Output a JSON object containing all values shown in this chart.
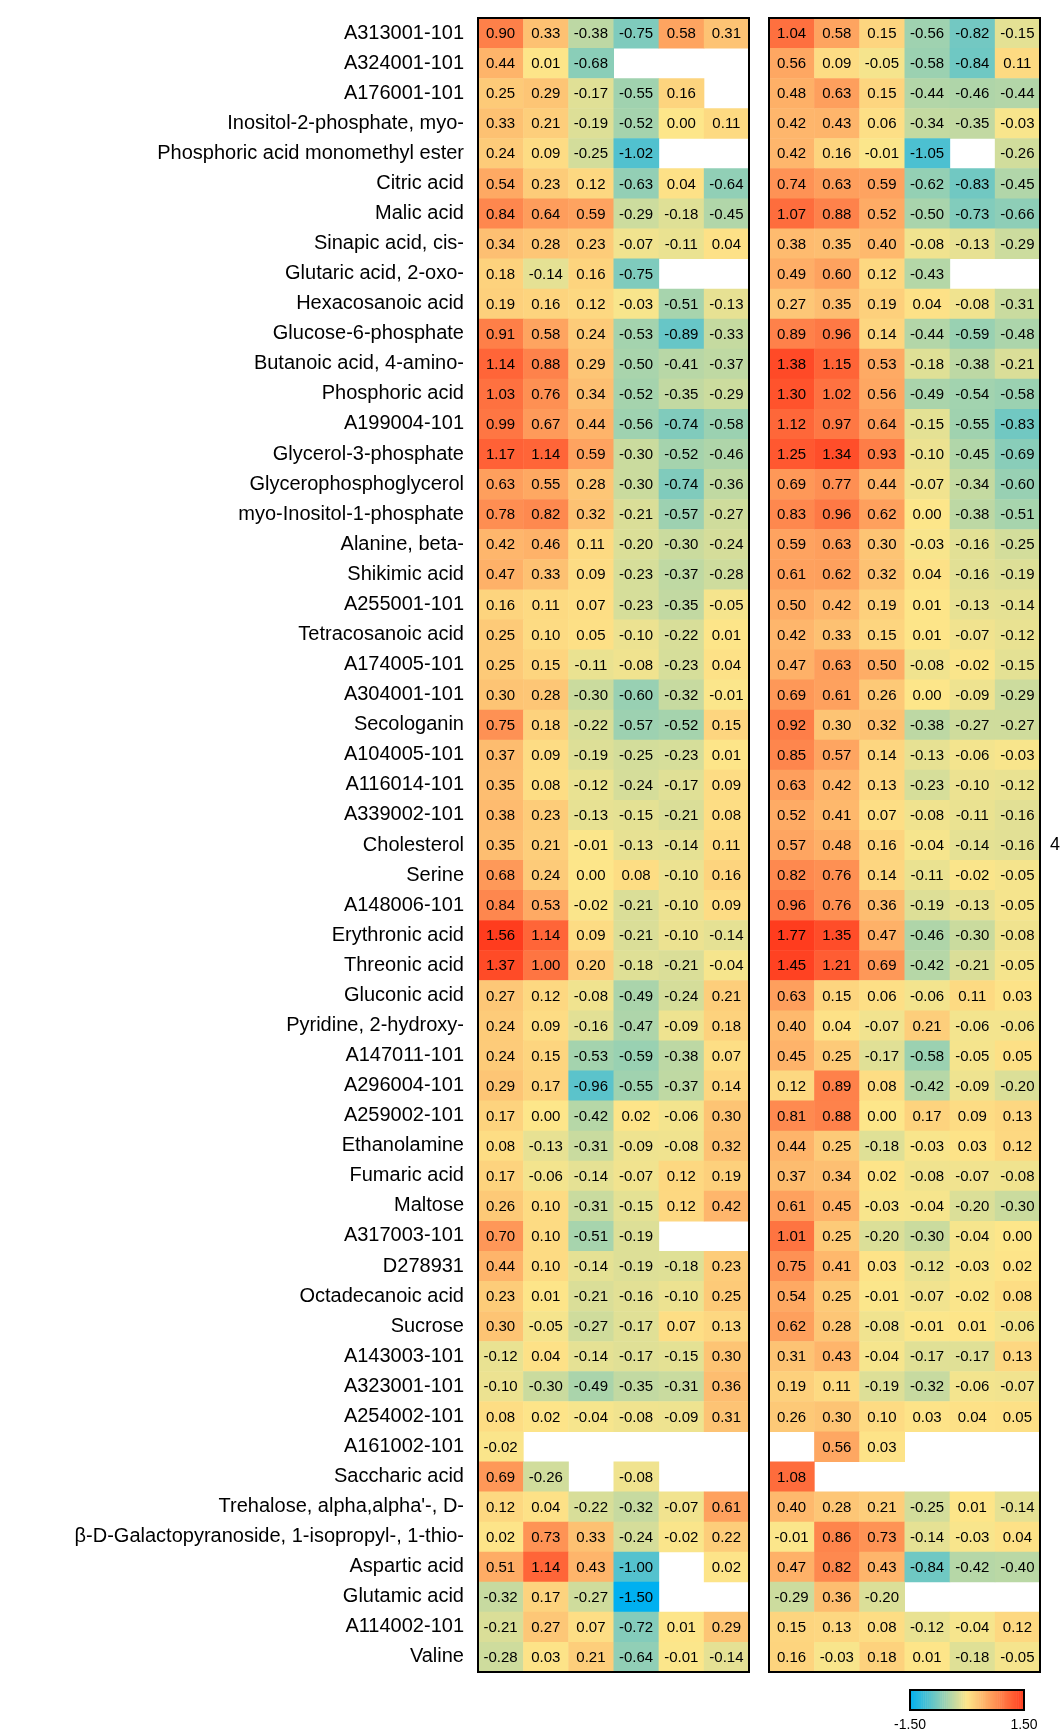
{
  "chart_data": {
    "type": "heatmap",
    "categories": [
      null,
      null,
      null,
      null,
      null,
      null,
      null,
      null,
      null,
      null,
      null,
      null
    ],
    "y_categories": [
      "A313001-101",
      "A324001-101",
      "A176001-101",
      "Inositol-2-phosphate, myo-",
      "Phosphoric acid monomethyl ester",
      "Citric acid",
      "Malic acid",
      "Sinapic acid, cis-",
      "Glutaric acid, 2-oxo-",
      "Hexacosanoic acid",
      "Glucose-6-phosphate",
      "Butanoic acid, 4-amino-",
      "Phosphoric acid",
      "A199004-101",
      "Glycerol-3-phosphate",
      "Glycerophosphoglycerol",
      "myo-Inositol-1-phosphate",
      "Alanine, beta-",
      "Shikimic acid",
      "A255001-101",
      "Tetracosanoic acid",
      "A174005-101",
      "A304001-101",
      "Secologanin",
      "A104005-101",
      "A116014-101",
      "A339002-101",
      "Cholesterol",
      "Serine",
      "A148006-101",
      "Erythronic acid",
      "Threonic acid",
      "Gluconic acid",
      "Pyridine, 2-hydroxy-",
      "A147011-101",
      "A296004-101",
      "A259002-101",
      "Ethanolamine",
      "Fumaric acid",
      "Maltose",
      "A317003-101",
      "D278931",
      "Octadecanoic acid",
      "Sucrose",
      "A143003-101",
      "A323001-101",
      "A254002-101",
      "A161002-101",
      "Saccharic acid",
      "Trehalose, alpha,alpha'-, D-",
      "β-D-Galactopyranoside, 1-isopropyl-, 1-thio-",
      "Aspartic acid",
      "Glutamic acid",
      "A114002-101",
      "Valine"
    ],
    "cells": [
      [
        0.9,
        0.33,
        -0.38,
        -0.75,
        0.58,
        0.31,
        1.04,
        0.58,
        0.15,
        -0.56,
        -0.82,
        -0.15
      ],
      [
        0.44,
        0.01,
        -0.68,
        null,
        null,
        null,
        0.56,
        0.09,
        -0.05,
        -0.58,
        -0.84,
        0.11
      ],
      [
        0.25,
        0.29,
        -0.17,
        -0.55,
        0.16,
        null,
        0.48,
        0.63,
        0.15,
        -0.44,
        -0.46,
        -0.44
      ],
      [
        0.33,
        0.21,
        -0.19,
        -0.52,
        0.0,
        0.11,
        0.42,
        0.43,
        0.06,
        -0.34,
        -0.35,
        -0.03
      ],
      [
        0.24,
        0.09,
        -0.25,
        -1.02,
        null,
        null,
        0.42,
        0.16,
        -0.01,
        -1.05,
        null,
        -0.26
      ],
      [
        0.54,
        0.23,
        0.12,
        -0.63,
        0.04,
        -0.64,
        0.74,
        0.63,
        0.59,
        -0.62,
        -0.83,
        -0.45
      ],
      [
        0.84,
        0.64,
        0.59,
        -0.29,
        -0.18,
        -0.45,
        1.07,
        0.88,
        0.52,
        -0.5,
        -0.73,
        -0.66
      ],
      [
        0.34,
        0.28,
        0.23,
        -0.07,
        -0.11,
        0.04,
        0.38,
        0.35,
        0.4,
        -0.08,
        -0.13,
        -0.29
      ],
      [
        0.18,
        -0.14,
        0.16,
        -0.75,
        null,
        null,
        0.49,
        0.6,
        0.12,
        -0.43,
        null,
        null
      ],
      [
        0.19,
        0.16,
        0.12,
        -0.03,
        -0.51,
        -0.13,
        0.27,
        0.35,
        0.19,
        0.04,
        -0.08,
        -0.31
      ],
      [
        0.91,
        0.58,
        0.24,
        -0.53,
        -0.89,
        -0.33,
        0.89,
        0.96,
        0.14,
        -0.44,
        -0.59,
        -0.48
      ],
      [
        1.14,
        0.88,
        0.29,
        -0.5,
        -0.41,
        -0.37,
        1.38,
        1.15,
        0.53,
        -0.18,
        -0.38,
        -0.21
      ],
      [
        1.03,
        0.76,
        0.34,
        -0.52,
        -0.35,
        -0.29,
        1.3,
        1.02,
        0.56,
        -0.49,
        -0.54,
        -0.58
      ],
      [
        0.99,
        0.67,
        0.44,
        -0.56,
        -0.74,
        -0.58,
        1.12,
        0.97,
        0.64,
        -0.15,
        -0.55,
        -0.83
      ],
      [
        1.17,
        1.14,
        0.59,
        -0.3,
        -0.52,
        -0.46,
        1.25,
        1.34,
        0.93,
        -0.1,
        -0.45,
        -0.69
      ],
      [
        0.63,
        0.55,
        0.28,
        -0.3,
        -0.74,
        -0.36,
        0.69,
        0.77,
        0.44,
        -0.07,
        -0.34,
        -0.6
      ],
      [
        0.78,
        0.82,
        0.32,
        -0.21,
        -0.57,
        -0.27,
        0.83,
        0.96,
        0.62,
        0.0,
        -0.38,
        -0.51
      ],
      [
        0.42,
        0.46,
        0.11,
        -0.2,
        -0.3,
        -0.24,
        0.59,
        0.63,
        0.3,
        -0.03,
        -0.16,
        -0.25
      ],
      [
        0.47,
        0.33,
        0.09,
        -0.23,
        -0.37,
        -0.28,
        0.61,
        0.62,
        0.32,
        0.04,
        -0.16,
        -0.19
      ],
      [
        0.16,
        0.11,
        0.07,
        -0.23,
        -0.35,
        -0.05,
        0.5,
        0.42,
        0.19,
        0.01,
        -0.13,
        -0.14
      ],
      [
        0.25,
        0.1,
        0.05,
        -0.1,
        -0.22,
        0.01,
        0.42,
        0.33,
        0.15,
        0.01,
        -0.07,
        -0.12
      ],
      [
        0.25,
        0.15,
        -0.11,
        -0.08,
        -0.23,
        0.04,
        0.47,
        0.63,
        0.5,
        -0.08,
        -0.02,
        -0.15
      ],
      [
        0.3,
        0.28,
        -0.3,
        -0.6,
        -0.32,
        -0.01,
        0.69,
        0.61,
        0.26,
        0.0,
        -0.09,
        -0.29
      ],
      [
        0.75,
        0.18,
        -0.22,
        -0.57,
        -0.52,
        0.15,
        0.92,
        0.3,
        0.32,
        -0.38,
        -0.27,
        -0.27
      ],
      [
        0.37,
        0.09,
        -0.19,
        -0.25,
        -0.23,
        0.01,
        0.85,
        0.57,
        0.14,
        -0.13,
        -0.06,
        -0.03
      ],
      [
        0.35,
        0.08,
        -0.12,
        -0.24,
        -0.17,
        0.09,
        0.63,
        0.42,
        0.13,
        -0.23,
        -0.1,
        -0.12
      ],
      [
        0.38,
        0.23,
        -0.13,
        -0.15,
        -0.21,
        0.08,
        0.52,
        0.41,
        0.07,
        -0.08,
        -0.11,
        -0.16
      ],
      [
        0.35,
        0.21,
        -0.01,
        -0.13,
        -0.14,
        0.11,
        0.57,
        0.48,
        0.16,
        -0.04,
        -0.14,
        -0.16
      ],
      [
        0.68,
        0.24,
        0.0,
        0.08,
        -0.1,
        0.16,
        0.82,
        0.76,
        0.14,
        -0.11,
        -0.02,
        -0.05
      ],
      [
        0.84,
        0.53,
        -0.02,
        -0.21,
        -0.1,
        0.09,
        0.96,
        0.76,
        0.36,
        -0.19,
        -0.13,
        -0.05
      ],
      [
        1.56,
        1.14,
        0.09,
        -0.21,
        -0.1,
        -0.14,
        1.77,
        1.35,
        0.47,
        -0.46,
        -0.3,
        -0.08
      ],
      [
        1.37,
        1.0,
        0.2,
        -0.18,
        -0.21,
        -0.04,
        1.45,
        1.21,
        0.69,
        -0.42,
        -0.21,
        -0.05
      ],
      [
        0.27,
        0.12,
        -0.08,
        -0.49,
        -0.24,
        0.21,
        0.63,
        0.15,
        0.06,
        -0.06,
        0.11,
        0.03
      ],
      [
        0.24,
        0.09,
        -0.16,
        -0.47,
        -0.09,
        0.18,
        0.4,
        0.04,
        -0.07,
        0.21,
        -0.06,
        -0.06
      ],
      [
        0.24,
        0.15,
        -0.53,
        -0.59,
        -0.38,
        0.07,
        0.45,
        0.25,
        -0.17,
        -0.58,
        -0.05,
        0.05
      ],
      [
        0.29,
        0.17,
        -0.96,
        -0.55,
        -0.37,
        0.14,
        0.12,
        0.89,
        0.08,
        -0.42,
        -0.09,
        -0.2
      ],
      [
        0.17,
        0.0,
        -0.42,
        0.02,
        -0.06,
        0.3,
        0.81,
        0.88,
        0.0,
        0.17,
        0.09,
        0.13
      ],
      [
        0.08,
        -0.13,
        -0.31,
        -0.09,
        -0.08,
        0.32,
        0.44,
        0.25,
        -0.18,
        -0.03,
        0.03,
        0.12
      ],
      [
        0.17,
        -0.06,
        -0.14,
        -0.07,
        0.12,
        0.19,
        0.37,
        0.34,
        0.02,
        -0.08,
        -0.07,
        -0.08
      ],
      [
        0.26,
        0.1,
        -0.31,
        -0.15,
        0.12,
        0.42,
        0.61,
        0.45,
        -0.03,
        -0.04,
        -0.2,
        -0.3
      ],
      [
        0.7,
        0.1,
        -0.51,
        -0.19,
        null,
        null,
        1.01,
        0.25,
        -0.2,
        -0.3,
        -0.04,
        0.0
      ],
      [
        0.44,
        0.1,
        -0.14,
        -0.19,
        -0.18,
        0.23,
        0.75,
        0.41,
        0.03,
        -0.12,
        -0.03,
        0.02
      ],
      [
        0.23,
        0.01,
        -0.21,
        -0.16,
        -0.1,
        0.25,
        0.54,
        0.25,
        -0.01,
        -0.07,
        -0.02,
        0.08
      ],
      [
        0.3,
        -0.05,
        -0.27,
        -0.17,
        0.07,
        0.13,
        0.62,
        0.28,
        -0.08,
        -0.01,
        0.01,
        -0.06
      ],
      [
        -0.12,
        0.04,
        -0.14,
        -0.17,
        -0.15,
        0.3,
        0.31,
        0.43,
        -0.04,
        -0.17,
        -0.17,
        0.13
      ],
      [
        -0.1,
        -0.3,
        -0.49,
        -0.35,
        -0.31,
        0.36,
        0.19,
        0.11,
        -0.19,
        -0.32,
        -0.06,
        -0.07
      ],
      [
        0.08,
        0.02,
        -0.04,
        -0.08,
        -0.09,
        0.31,
        0.26,
        0.3,
        0.1,
        0.03,
        0.04,
        0.05
      ],
      [
        -0.02,
        null,
        null,
        null,
        null,
        null,
        null,
        0.56,
        0.03,
        null,
        null,
        null
      ],
      [
        0.69,
        -0.26,
        null,
        -0.08,
        null,
        null,
        1.08,
        null,
        null,
        null,
        null,
        null
      ],
      [
        0.12,
        0.04,
        -0.22,
        -0.32,
        -0.07,
        0.61,
        0.4,
        0.28,
        0.21,
        -0.25,
        0.01,
        -0.14
      ],
      [
        0.02,
        0.73,
        0.33,
        -0.24,
        -0.02,
        0.22,
        -0.01,
        0.86,
        0.73,
        -0.14,
        -0.03,
        0.04
      ],
      [
        0.51,
        1.14,
        0.43,
        -1.0,
        null,
        0.02,
        0.47,
        0.82,
        0.43,
        -0.84,
        -0.42,
        -0.4
      ],
      [
        -0.32,
        0.17,
        -0.27,
        -1.5,
        null,
        null,
        -0.29,
        0.36,
        -0.2,
        null,
        null,
        null
      ],
      [
        -0.21,
        0.27,
        0.07,
        -0.72,
        0.01,
        0.29,
        0.15,
        0.13,
        0.08,
        -0.12,
        -0.04,
        0.12
      ],
      [
        -0.28,
        0.03,
        0.21,
        -0.64,
        -0.01,
        -0.14,
        0.16,
        -0.03,
        0.18,
        0.01,
        -0.18,
        -0.05
      ]
    ],
    "cell_labels": [
      [
        "0.90",
        "0.33",
        "-0.38",
        "-0.75",
        "0.58",
        "0.31",
        "1.04",
        "0.58",
        "0.15",
        "-0.56",
        "-0.82",
        "-0.15"
      ],
      [
        "0.44",
        "0.01",
        "-0.68",
        null,
        null,
        null,
        "0.56",
        "0.09",
        "-0.05",
        "-0.58",
        "-0.84",
        "0.11"
      ],
      [
        "0.25",
        "0.29",
        "-0.17",
        "-0.55",
        "0.16",
        null,
        "0.48",
        "0.63",
        "0.15",
        "-0.44",
        "-0.46",
        "-0.44"
      ],
      [
        "0.33",
        "0.21",
        "-0.19",
        "-0.52",
        "0.00",
        "0.11",
        "0.42",
        "0.43",
        "0.06",
        "-0.34",
        "-0.35",
        "-0.03"
      ],
      [
        "0.24",
        "0.09",
        "-0.25",
        "-1.02",
        null,
        null,
        "0.42",
        "0.16",
        "-0.01",
        "-1.05",
        null,
        "-0.26"
      ],
      [
        "0.54",
        "0.23",
        "0.12",
        "-0.63",
        "0.04",
        "-0.64",
        "0.74",
        "0.63",
        "0.59",
        "-0.62",
        "-0.83",
        "-0.45"
      ],
      [
        "0.84",
        "0.64",
        "0.59",
        "-0.29",
        "-0.18",
        "-0.45",
        "1.07",
        "0.88",
        "0.52",
        "-0.50",
        "-0.73",
        "-0.66"
      ],
      [
        "0.34",
        "0.28",
        "0.23",
        "-0.07",
        "-0.11",
        "0.04",
        "0.38",
        "0.35",
        "0.40",
        "-0.08",
        "-0.13",
        "-0.29"
      ],
      [
        "0.18",
        "-0.14",
        "0.16",
        "-0.75",
        null,
        null,
        "0.49",
        "0.60",
        "0.12",
        "-0.43",
        null,
        null
      ],
      [
        "0.19",
        "0.16",
        "0.12",
        "-0.03",
        "-0.51",
        "-0.13",
        "0.27",
        "0.35",
        "0.19",
        "0.04",
        "-0.08",
        "-0.31"
      ],
      [
        "0.91",
        "0.58",
        "0.24",
        "-0.53",
        "-0.89",
        "-0.33",
        "0.89",
        "0.96",
        "0.14",
        "-0.44",
        "-0.59",
        "-0.48"
      ],
      [
        "1.14",
        "0.88",
        "0.29",
        "-0.50",
        "-0.41",
        "-0.37",
        "1.38",
        "1.15",
        "0.53",
        "-0.18",
        "-0.38",
        "-0.21"
      ],
      [
        "1.03",
        "0.76",
        "0.34",
        "-0.52",
        "-0.35",
        "-0.29",
        "1.30",
        "1.02",
        "0.56",
        "-0.49",
        "-0.54",
        "-0.58"
      ],
      [
        "0.99",
        "0.67",
        "0.44",
        "-0.56",
        "-0.74",
        "-0.58",
        "1.12",
        "0.97",
        "0.64",
        "-0.15",
        "-0.55",
        "-0.83"
      ],
      [
        "1.17",
        "1.14",
        "0.59",
        "-0.30",
        "-0.52",
        "-0.46",
        "1.25",
        "1.34",
        "0.93",
        "-0.10",
        "-0.45",
        "-0.69"
      ],
      [
        "0.63",
        "0.55",
        "0.28",
        "-0.30",
        "-0.74",
        "-0.36",
        "0.69",
        "0.77",
        "0.44",
        "-0.07",
        "-0.34",
        "-0.60"
      ],
      [
        "0.78",
        "0.82",
        "0.32",
        "-0.21",
        "-0.57",
        "-0.27",
        "0.83",
        "0.96",
        "0.62",
        "0.00",
        "-0.38",
        "-0.51"
      ],
      [
        "0.42",
        "0.46",
        "0.11",
        "-0.20",
        "-0.30",
        "-0.24",
        "0.59",
        "0.63",
        "0.30",
        "-0.03",
        "-0.16",
        "-0.25"
      ],
      [
        "0.47",
        "0.33",
        "0.09",
        "-0.23",
        "-0.37",
        "-0.28",
        "0.61",
        "0.62",
        "0.32",
        "0.04",
        "-0.16",
        "-0.19"
      ],
      [
        "0.16",
        "0.11",
        "0.07",
        "-0.23",
        "-0.35",
        "-0.05",
        "0.50",
        "0.42",
        "0.19",
        "0.01",
        "-0.13",
        "-0.14"
      ],
      [
        "0.25",
        "0.10",
        "0.05",
        "-0.10",
        "-0.22",
        "0.01",
        "0.42",
        "0.33",
        "0.15",
        "0.01",
        "-0.07",
        "-0.12"
      ],
      [
        "0.25",
        "0.15",
        "-0.11",
        "-0.08",
        "-0.23",
        "0.04",
        "0.47",
        "0.63",
        "0.50",
        "-0.08",
        "-0.02",
        "-0.15"
      ],
      [
        "0.30",
        "0.28",
        "-0.30",
        "-0.60",
        "-0.32",
        "-0.01",
        "0.69",
        "0.61",
        "0.26",
        "0.00",
        "-0.09",
        "-0.29"
      ],
      [
        "0.75",
        "0.18",
        "-0.22",
        "-0.57",
        "-0.52",
        "0.15",
        "0.92",
        "0.30",
        "0.32",
        "-0.38",
        "-0.27",
        "-0.27"
      ],
      [
        "0.37",
        "0.09",
        "-0.19",
        "-0.25",
        "-0.23",
        "0.01",
        "0.85",
        "0.57",
        "0.14",
        "-0.13",
        "-0.06",
        "-0.03"
      ],
      [
        "0.35",
        "0.08",
        "-0.12",
        "-0.24",
        "-0.17",
        "0.09",
        "0.63",
        "0.42",
        "0.13",
        "-0.23",
        "-0.10",
        "-0.12"
      ],
      [
        "0.38",
        "0.23",
        "-0.13",
        "-0.15",
        "-0.21",
        "0.08",
        "0.52",
        "0.41",
        "0.07",
        "-0.08",
        "-0.11",
        "-0.16"
      ],
      [
        "0.35",
        "0.21",
        "-0.01",
        "-0.13",
        "-0.14",
        "0.11",
        "0.57",
        "0.48",
        "0.16",
        "-0.04",
        "-0.14",
        "-0.16"
      ],
      [
        "0.68",
        "0.24",
        "0.00",
        "0.08",
        "-0.10",
        "0.16",
        "0.82",
        "0.76",
        "0.14",
        "-0.11",
        "-0.02",
        "-0.05"
      ],
      [
        "0.84",
        "0.53",
        "-0.02",
        "-0.21",
        "-0.10",
        "0.09",
        "0.96",
        "0.76",
        "0.36",
        "-0.19",
        "-0.13",
        "-0.05"
      ],
      [
        "1.56",
        "1.14",
        "0.09",
        "-0.21",
        "-0.10",
        "-0.14",
        "1.77",
        "1.35",
        "0.47",
        "-0.46",
        "-0.30",
        "-0.08"
      ],
      [
        "1.37",
        "1.00",
        "0.20",
        "-0.18",
        "-0.21",
        "-0.04",
        "1.45",
        "1.21",
        "0.69",
        "-0.42",
        "-0.21",
        "-0.05"
      ],
      [
        "0.27",
        "0.12",
        "-0.08",
        "-0.49",
        "-0.24",
        "0.21",
        "0.63",
        "0.15",
        "0.06",
        "-0.06",
        "0.11",
        "0.03"
      ],
      [
        "0.24",
        "0.09",
        "-0.16",
        "-0.47",
        "-0.09",
        "0.18",
        "0.40",
        "0.04",
        "-0.07",
        "0.21",
        "-0.06",
        "-0.06"
      ],
      [
        "0.24",
        "0.15",
        "-0.53",
        "-0.59",
        "-0.38",
        "0.07",
        "0.45",
        "0.25",
        "-0.17",
        "-0.58",
        "-0.05",
        "0.05"
      ],
      [
        "0.29",
        "0.17",
        "-0.96",
        "-0.55",
        "-0.37",
        "0.14",
        "0.12",
        "0.89",
        "0.08",
        "-0.42",
        "-0.09",
        "-0.20"
      ],
      [
        "0.17",
        "0.00",
        "-0.42",
        "0.02",
        "-0.06",
        "0.30",
        "0.81",
        "0.88",
        "0.00",
        "0.17",
        "0.09",
        "0.13"
      ],
      [
        "0.08",
        "-0.13",
        "-0.31",
        "-0.09",
        "-0.08",
        "0.32",
        "0.44",
        "0.25",
        "-0.18",
        "-0.03",
        "0.03",
        "0.12"
      ],
      [
        "0.17",
        "-0.06",
        "-0.14",
        "-0.07",
        "0.12",
        "0.19",
        "0.37",
        "0.34",
        "0.02",
        "-0.08",
        "-0.07",
        "-0.08"
      ],
      [
        "0.26",
        "0.10",
        "-0.31",
        "-0.15",
        "0.12",
        "0.42",
        "0.61",
        "0.45",
        "-0.03",
        "-0.04",
        "-0.20",
        "-0.30"
      ],
      [
        "0.70",
        "0.10",
        "-0.51",
        "-0.19",
        null,
        null,
        "1.01",
        "0.25",
        "-0.20",
        "-0.30",
        "-0.04",
        "0.00"
      ],
      [
        "0.44",
        "0.10",
        "-0.14",
        "-0.19",
        "-0.18",
        "0.23",
        "0.75",
        "0.41",
        "0.03",
        "-0.12",
        "-0.03",
        "0.02"
      ],
      [
        "0.23",
        "0.01",
        "-0.21",
        "-0.16",
        "-0.10",
        "0.25",
        "0.54",
        "0.25",
        "-0.01",
        "-0.07",
        "-0.02",
        "0.08"
      ],
      [
        "0.30",
        "-0.05",
        "-0.27",
        "-0.17",
        "0.07",
        "0.13",
        "0.62",
        "0.28",
        "-0.08",
        "-0.01",
        "0.01",
        "-0.06"
      ],
      [
        "-0.12",
        "0.04",
        "-0.14",
        "-0.17",
        "-0.15",
        "0.30",
        "0.31",
        "0.43",
        "-0.04",
        "-0.17",
        "-0.17",
        "0.13"
      ],
      [
        "-0.10",
        "-0.30",
        "-0.49",
        "-0.35",
        "-0.31",
        "0.36",
        "0.19",
        "0.11",
        "-0.19",
        "-0.32",
        "-0.06",
        "-0.07"
      ],
      [
        "0.08",
        "0.02",
        "-0.04",
        "-0.08",
        "-0.09",
        "0.31",
        "0.26",
        "0.30",
        "0.10",
        "0.03",
        "0.04",
        "0.05"
      ],
      [
        "-0.02",
        null,
        null,
        null,
        null,
        null,
        null,
        "0.56",
        "0.03",
        null,
        null,
        null
      ],
      [
        "0.69",
        "-0.26",
        null,
        "-0.08",
        null,
        null,
        "1.08",
        null,
        null,
        null,
        null,
        null
      ],
      [
        "0.12",
        "0.04",
        "-0.22",
        "-0.32",
        "-0.07",
        "0.61",
        "0.40",
        "0.28",
        "0.21",
        "-0.25",
        "0.01",
        "-0.14"
      ],
      [
        "0.02",
        "0.73",
        "0.33",
        "-0.24",
        "-0.02",
        "0.22",
        "-0.01",
        "0.86",
        "0.73",
        "-0.14",
        "-0.03",
        "0.04"
      ],
      [
        "0.51",
        "1.14",
        "0.43",
        "-1.00",
        null,
        "0.02",
        "0.47",
        "0.82",
        "0.43",
        "-0.84",
        "-0.42",
        "-0.40"
      ],
      [
        "-0.32",
        "0.17",
        "-0.27",
        "-1.50",
        null,
        null,
        "-0.29",
        "0.36",
        "-0.20",
        null,
        null,
        null
      ],
      [
        "-0.21",
        "0.27",
        "0.07",
        "-0.72",
        "0.01",
        "0.29",
        "0.15",
        "0.13",
        "0.08",
        "-0.12",
        "-0.04",
        "0.12"
      ],
      [
        "-0.28",
        "0.03",
        "0.21",
        "-0.64",
        "-0.01",
        "-0.14",
        "0.16",
        "-0.03",
        "0.18",
        "0.01",
        "-0.18",
        "-0.05"
      ]
    ],
    "clim": [
      -1.5,
      1.5
    ],
    "cticks": [
      {
        "value": -1.5,
        "label": "-1.50"
      },
      {
        "value": 1.5,
        "label": "1.50"
      }
    ],
    "tick_labels": "y",
    "annotations": [
      "4"
    ]
  }
}
